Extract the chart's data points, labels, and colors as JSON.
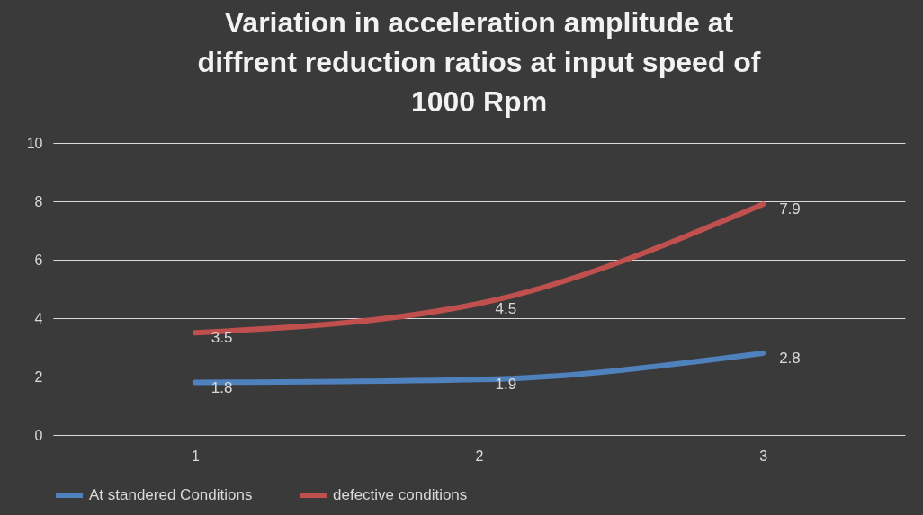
{
  "chart_data": {
    "type": "line",
    "title": [
      "Variation in acceleration amplitude at",
      "diffrent reduction ratios at input speed of",
      "1000 Rpm"
    ],
    "categories": [
      "1",
      "2",
      "3"
    ],
    "series": [
      {
        "name": "At standered Conditions",
        "color": "#4f81bd",
        "values": [
          1.8,
          1.9,
          2.8
        ]
      },
      {
        "name": "defective conditions",
        "color": "#c0504d",
        "values": [
          3.5,
          4.5,
          7.9
        ]
      }
    ],
    "ylim": [
      0,
      10
    ],
    "yticks": [
      0,
      2,
      4,
      6,
      8,
      10
    ],
    "grid": "y",
    "legend": "bottom",
    "data_labels": true,
    "marker": "none",
    "line_style": "solid"
  }
}
